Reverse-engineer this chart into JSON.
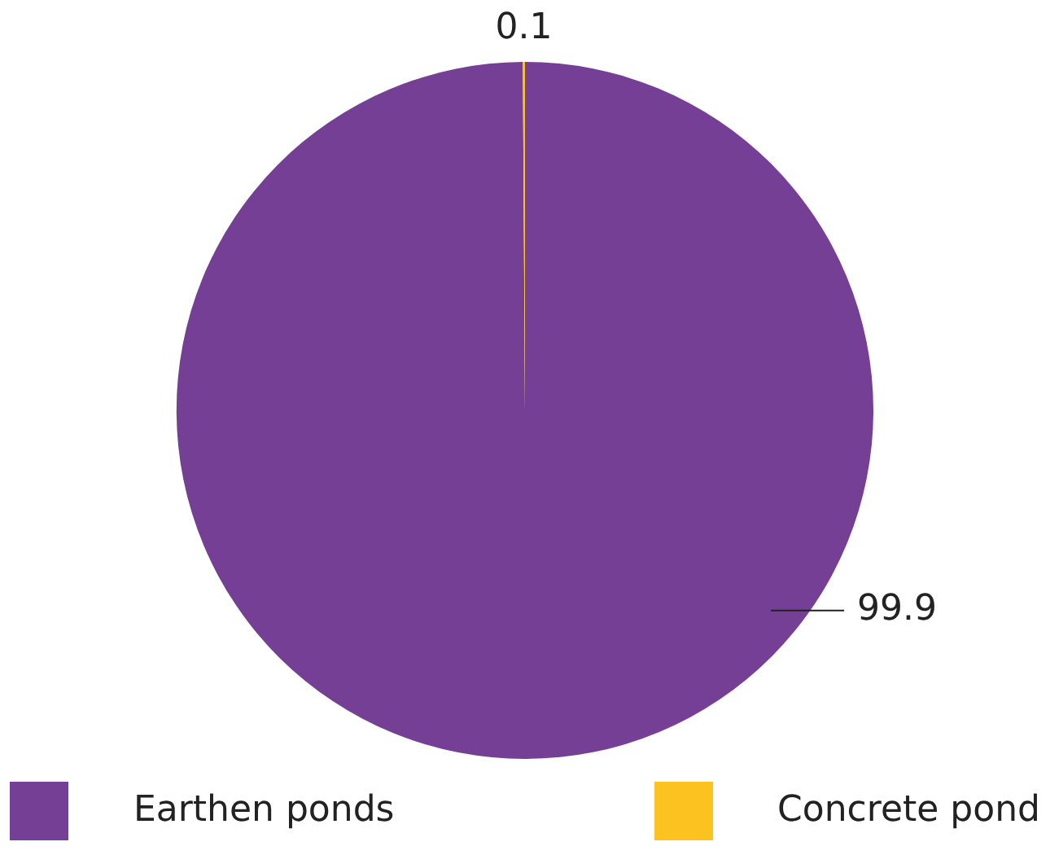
{
  "chart_data": {
    "type": "pie",
    "categories": [
      "Earthen ponds",
      "Concrete pond"
    ],
    "values": [
      99.9,
      0.1
    ],
    "colors": [
      "#763f96",
      "#fcc21f"
    ],
    "data_labels": true,
    "legend": "bottom"
  }
}
